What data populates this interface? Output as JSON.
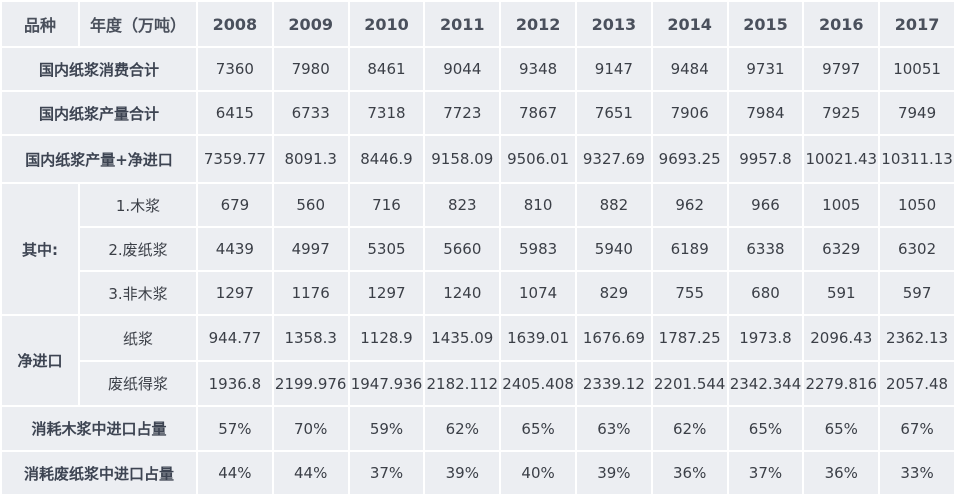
{
  "header": {
    "item": "品种",
    "year": "年度（万吨）",
    "years": [
      "2008",
      "2009",
      "2010",
      "2011",
      "2012",
      "2013",
      "2014",
      "2015",
      "2016",
      "2017"
    ]
  },
  "rows": [
    {
      "label": "国内纸浆消费合计",
      "values": [
        "7360",
        "7980",
        "8461",
        "9044",
        "9348",
        "9147",
        "9484",
        "9731",
        "9797",
        "10051"
      ]
    },
    {
      "label": "国内纸浆产量合计",
      "values": [
        "6415",
        "6733",
        "7318",
        "7723",
        "7867",
        "7651",
        "7906",
        "7984",
        "7925",
        "7949"
      ]
    },
    {
      "label": "国内纸浆产量+净进口",
      "values": [
        "7359.77",
        "8091.3",
        "8446.9",
        "9158.09",
        "9506.01",
        "9327.69",
        "9693.25",
        "9957.8",
        "10021.43",
        "10311.13"
      ]
    }
  ],
  "groups": [
    {
      "label": "其中:",
      "rows": [
        {
          "label": "1.木浆",
          "values": [
            "679",
            "560",
            "716",
            "823",
            "810",
            "882",
            "962",
            "966",
            "1005",
            "1050"
          ]
        },
        {
          "label": "2.废纸浆",
          "values": [
            "4439",
            "4997",
            "5305",
            "5660",
            "5983",
            "5940",
            "6189",
            "6338",
            "6329",
            "6302"
          ]
        },
        {
          "label": "3.非木浆",
          "values": [
            "1297",
            "1176",
            "1297",
            "1240",
            "1074",
            "829",
            "755",
            "680",
            "591",
            "597"
          ]
        }
      ]
    },
    {
      "label": "净进口",
      "rows": [
        {
          "label": "纸浆",
          "values": [
            "944.77",
            "1358.3",
            "1128.9",
            "1435.09",
            "1639.01",
            "1676.69",
            "1787.25",
            "1973.8",
            "2096.43",
            "2362.13"
          ]
        },
        {
          "label": "废纸得浆",
          "values": [
            "1936.8",
            "2199.976",
            "1947.936",
            "2182.112",
            "2405.408",
            "2339.12",
            "2201.544",
            "2342.344",
            "2279.816",
            "2057.48"
          ]
        }
      ]
    }
  ],
  "shares": [
    {
      "label": "消耗木浆中进口占量",
      "values": [
        "57%",
        "70%",
        "59%",
        "62%",
        "65%",
        "63%",
        "62%",
        "65%",
        "65%",
        "67%"
      ]
    },
    {
      "label": "消耗废纸浆中进口占量",
      "values": [
        "44%",
        "44%",
        "37%",
        "39%",
        "40%",
        "39%",
        "36%",
        "37%",
        "36%",
        "33%"
      ]
    }
  ]
}
